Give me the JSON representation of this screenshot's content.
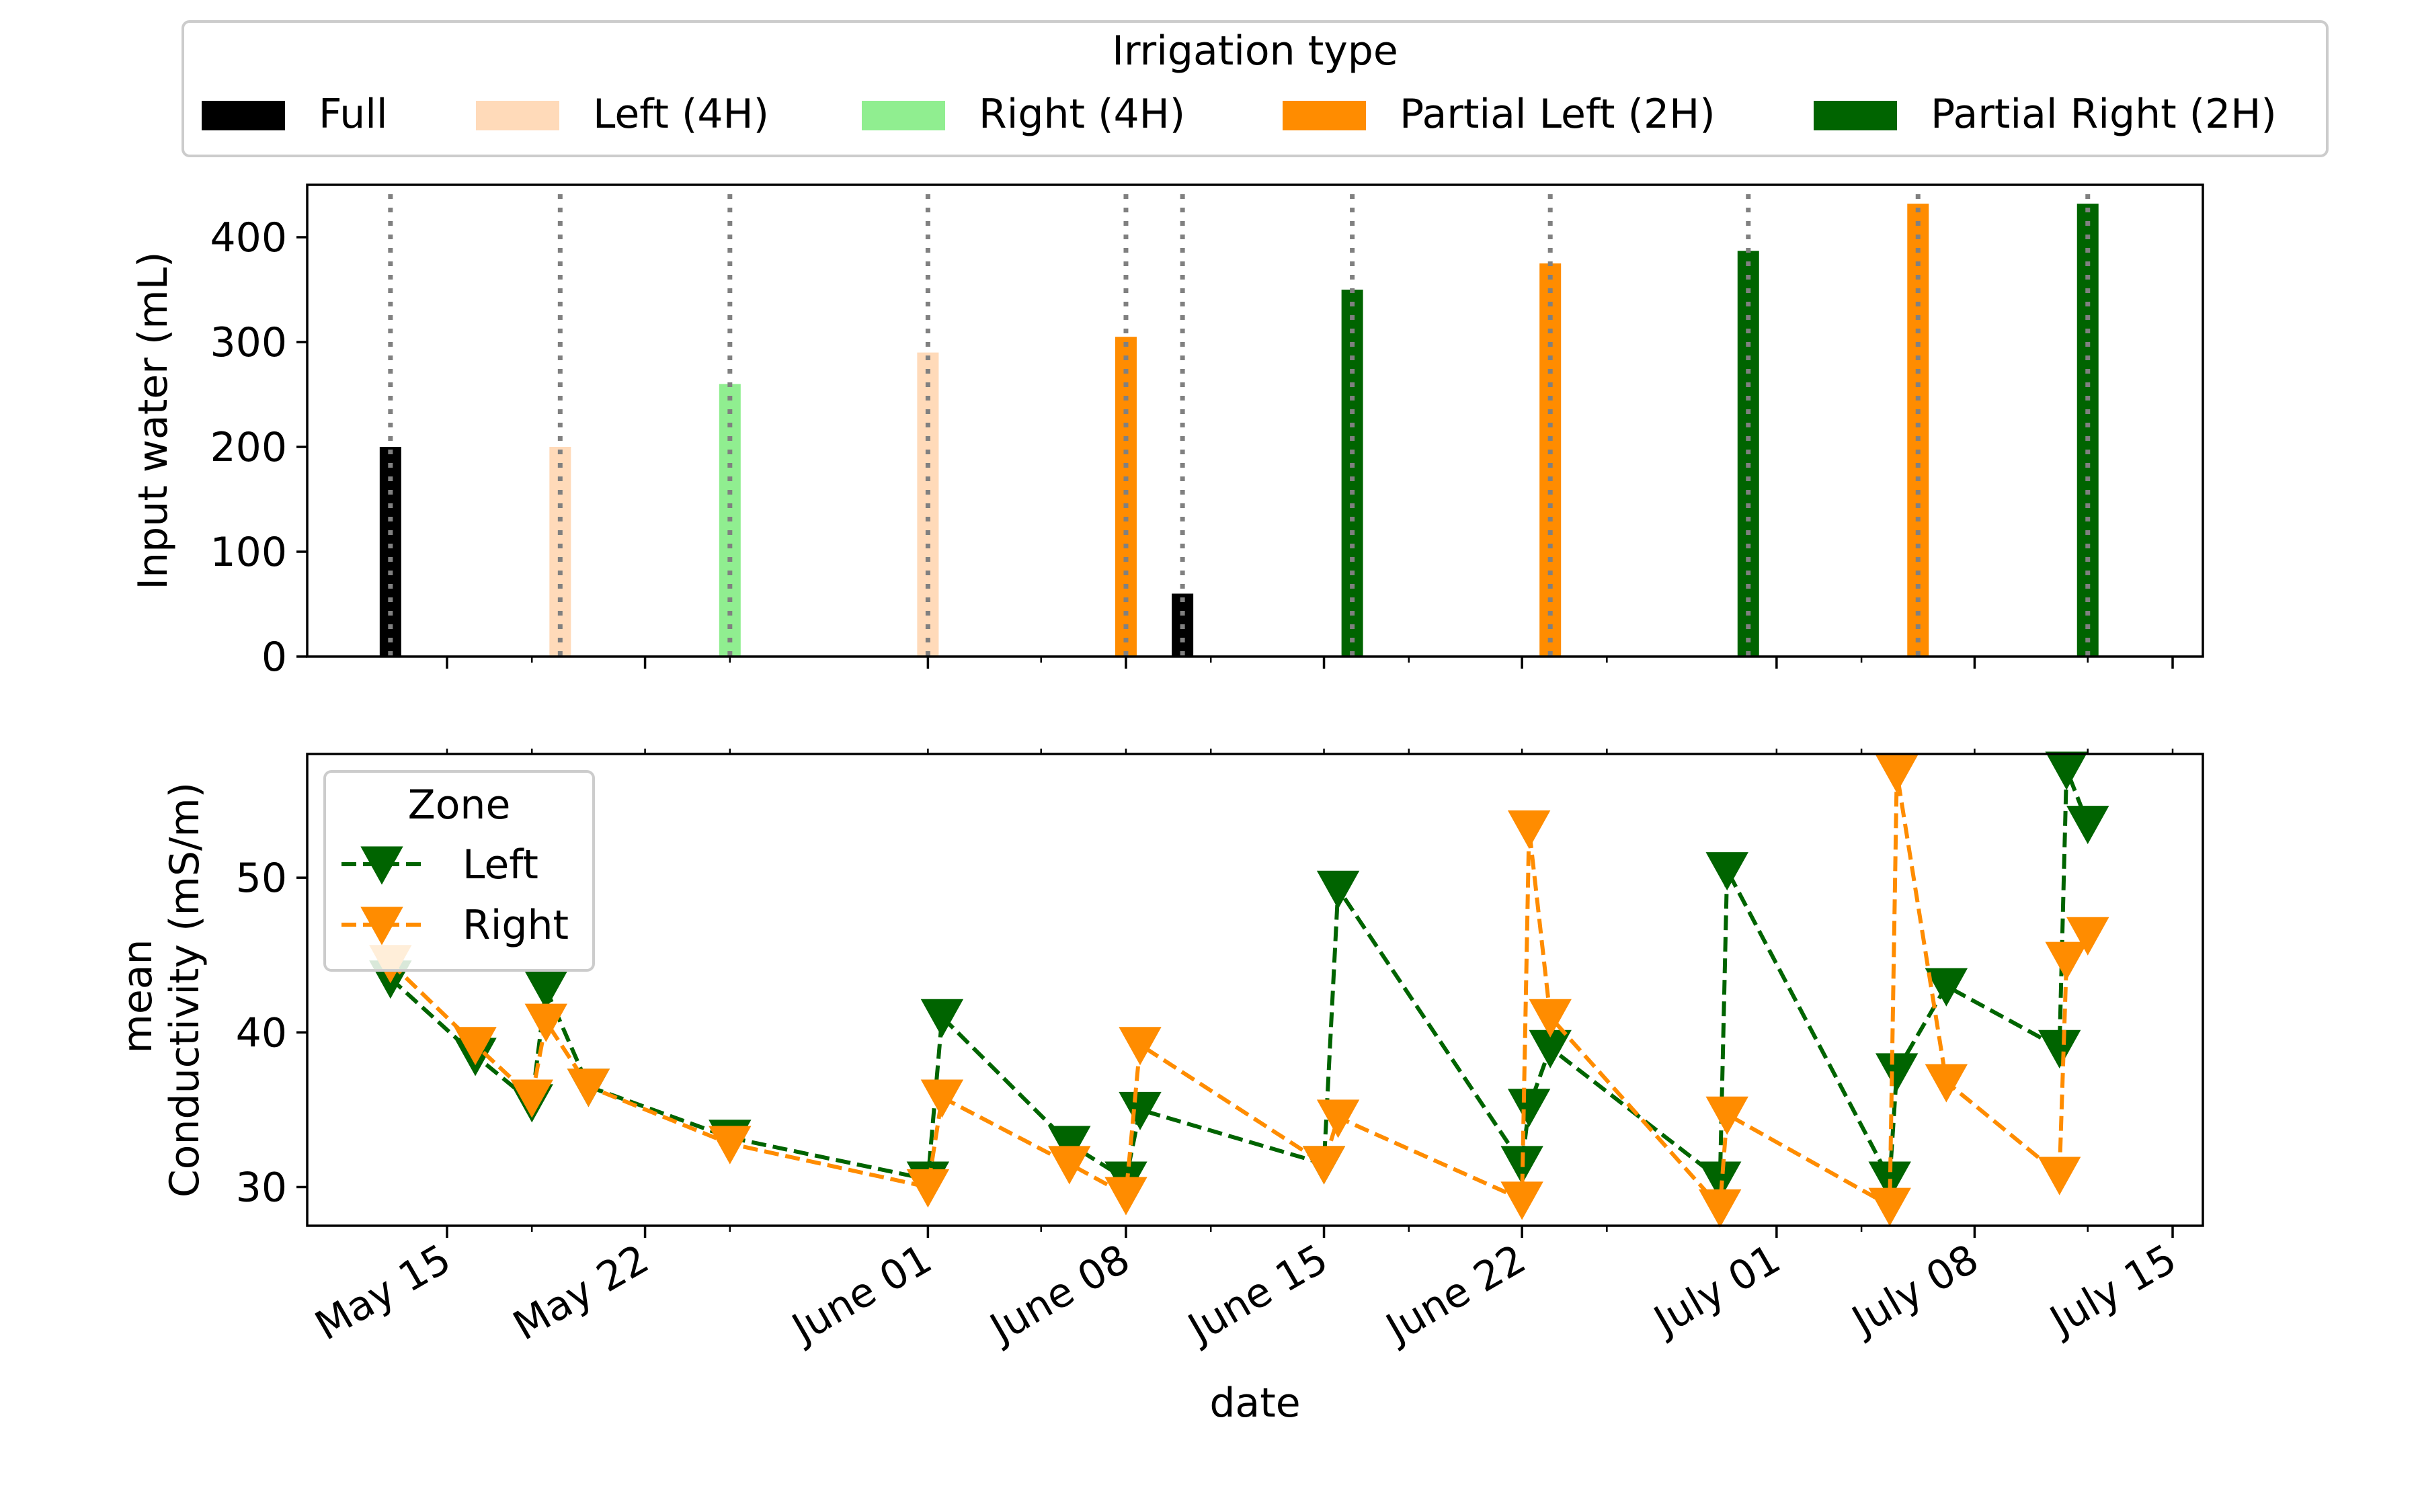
{
  "legend_irrigation": {
    "title": "Irrigation type",
    "entries": [
      {
        "label": "Full",
        "color": "#000000"
      },
      {
        "label": "Left (4H)",
        "color": "#ffdab9"
      },
      {
        "label": "Right (4H)",
        "color": "#90ee90"
      },
      {
        "label": "Partial Left (2H)",
        "color": "#ff8c00"
      },
      {
        "label": "Partial Right (2H)",
        "color": "#006400"
      }
    ]
  },
  "legend_zone": {
    "title": "Zone",
    "entries": [
      {
        "label": "Left",
        "color": "#006400"
      },
      {
        "label": "Right",
        "color": "#ff8c00"
      }
    ]
  },
  "x_ticks": [
    "May 15",
    "May 22",
    "June 01",
    "June 08",
    "June 15",
    "June 22",
    "July 01",
    "July 08",
    "July 15"
  ],
  "xlabel": "date",
  "chart_data": [
    {
      "type": "bar",
      "ylabel": "Input water (mL)",
      "ylim": [
        0,
        450
      ],
      "yticks": [
        0,
        100,
        200,
        300,
        400
      ],
      "x": [
        "2023-05-13",
        "2023-05-19",
        "2023-05-25",
        "2023-06-01",
        "2023-06-08",
        "2023-06-10",
        "2023-06-16",
        "2023-06-23",
        "2023-06-30",
        "2023-07-06",
        "2023-07-12"
      ],
      "values": [
        200,
        200,
        260,
        290,
        305,
        60,
        350,
        375,
        387,
        432,
        432
      ],
      "irrigation_type": [
        "Full",
        "Left (4H)",
        "Right (4H)",
        "Left (4H)",
        "Partial Left (2H)",
        "Full",
        "Partial Right (2H)",
        "Partial Left (2H)",
        "Partial Right (2H)",
        "Partial Left (2H)",
        "Partial Right (2H)"
      ]
    },
    {
      "type": "line",
      "ylabel": "mean\nConductivity (mS/m)",
      "ylim": [
        27.5,
        58
      ],
      "yticks": [
        30,
        40,
        50
      ],
      "series": [
        {
          "name": "Left",
          "x": [
            "2023-05-13",
            "2023-05-16",
            "2023-05-18",
            "2023-05-18T12:00",
            "2023-05-20",
            "2023-05-25",
            "2023-06-01",
            "2023-06-01T12:00",
            "2023-06-06",
            "2023-06-08",
            "2023-06-08T12:00",
            "2023-06-15",
            "2023-06-15T12:00",
            "2023-06-22",
            "2023-06-22T06:00",
            "2023-06-23",
            "2023-06-29",
            "2023-06-29T06:00",
            "2023-07-05",
            "2023-07-05T06:00",
            "2023-07-07",
            "2023-07-11",
            "2023-07-11T06:00",
            "2023-07-12"
          ],
          "values": [
            43.5,
            38.5,
            35.5,
            42.8,
            36.5,
            33.2,
            30.5,
            41.0,
            32.8,
            30.5,
            35.0,
            31.5,
            49.3,
            31.5,
            35.2,
            39.0,
            30.5,
            50.5,
            30.5,
            37.5,
            43.0,
            39.0,
            57.0,
            53.5
          ]
        },
        {
          "name": "Right",
          "x": [
            "2023-05-13",
            "2023-05-16",
            "2023-05-18",
            "2023-05-18T12:00",
            "2023-05-20",
            "2023-05-25",
            "2023-06-01",
            "2023-06-01T12:00",
            "2023-06-06",
            "2023-06-08",
            "2023-06-08T12:00",
            "2023-06-15",
            "2023-06-15T12:00",
            "2023-06-22",
            "2023-06-22T06:00",
            "2023-06-23",
            "2023-06-29",
            "2023-06-29T06:00",
            "2023-07-05",
            "2023-07-05T06:00",
            "2023-07-07",
            "2023-07-11",
            "2023-07-11T06:00",
            "2023-07-12"
          ],
          "values": [
            44.5,
            39.2,
            35.8,
            40.7,
            36.5,
            32.8,
            30.0,
            35.8,
            31.5,
            29.5,
            39.2,
            31.5,
            34.5,
            29.2,
            53.2,
            41.0,
            28.7,
            34.7,
            28.8,
            56.8,
            36.8,
            30.8,
            44.7,
            46.3
          ]
        }
      ]
    }
  ]
}
